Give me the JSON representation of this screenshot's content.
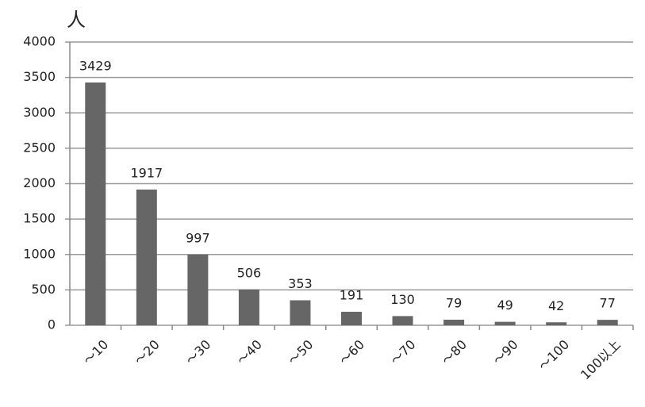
{
  "chart_data": {
    "type": "bar",
    "y_label": "人",
    "categories": [
      "～10",
      "～20",
      "～30",
      "～40",
      "～50",
      "～60",
      "～70",
      "～80",
      "～90",
      "～100",
      "100以上"
    ],
    "values": [
      3429,
      1917,
      997,
      506,
      353,
      191,
      130,
      79,
      49,
      42,
      77
    ],
    "color": "#666666",
    "ylim": [
      0,
      4000
    ],
    "yticks": [
      0,
      500,
      1000,
      1500,
      2000,
      2500,
      3000,
      3500,
      4000
    ],
    "grid": true
  }
}
